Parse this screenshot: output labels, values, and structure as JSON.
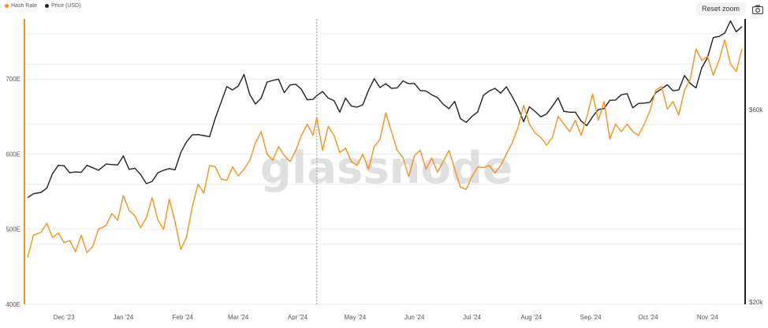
{
  "legend": {
    "hash_rate_label": "Hash Rate",
    "price_label": "Price (USD)"
  },
  "toolbar": {
    "reset_zoom_label": "Reset zoom",
    "camera_icon": "camera-icon"
  },
  "watermark": "glassnode",
  "colors": {
    "hash_rate": "#f7931a",
    "price": "#222222",
    "grid": "#ececec"
  },
  "chart_data": {
    "type": "line",
    "x_tick_labels": [
      "Dec '23",
      "Jan '24",
      "Feb '24",
      "Mar '24",
      "Apr '24",
      "May '24",
      "Jun '24",
      "Jul '24",
      "Aug '24",
      "Sep '24",
      "Oct '24",
      "Nov '24"
    ],
    "left_axis": {
      "tick_labels": [
        "400E",
        "500E",
        "600E",
        "700E"
      ],
      "ticks": [
        400,
        500,
        600,
        700
      ],
      "range": [
        400,
        780
      ]
    },
    "right_axis": {
      "tick_labels": [
        "$20k",
        "$60k"
      ],
      "ticks": [
        20000,
        60000
      ],
      "range": [
        20000,
        100000
      ],
      "scale": "log"
    },
    "grid": "horizontal",
    "legend_position": "top-left",
    "crosshair_date": "2024-04-20",
    "series": [
      {
        "name": "Hash Rate",
        "axis": "left",
        "points": [
          [
            "2023-11-21",
            462
          ],
          [
            "2023-11-24",
            492
          ],
          [
            "2023-11-28",
            496
          ],
          [
            "2023-12-01",
            508
          ],
          [
            "2023-12-04",
            489
          ],
          [
            "2023-12-07",
            495
          ],
          [
            "2023-12-10",
            482
          ],
          [
            "2023-12-13",
            485
          ],
          [
            "2023-12-16",
            470
          ],
          [
            "2023-12-19",
            492
          ],
          [
            "2023-12-22",
            469
          ],
          [
            "2023-12-25",
            477
          ],
          [
            "2023-12-28",
            500
          ],
          [
            "2024-01-01",
            505
          ],
          [
            "2024-01-04",
            521
          ],
          [
            "2024-01-07",
            512
          ],
          [
            "2024-01-10",
            545
          ],
          [
            "2024-01-13",
            525
          ],
          [
            "2024-01-16",
            518
          ],
          [
            "2024-01-19",
            502
          ],
          [
            "2024-01-22",
            515
          ],
          [
            "2024-01-25",
            542
          ],
          [
            "2024-01-28",
            512
          ],
          [
            "2024-01-31",
            500
          ],
          [
            "2024-02-03",
            540
          ],
          [
            "2024-02-06",
            510
          ],
          [
            "2024-02-09",
            473
          ],
          [
            "2024-02-12",
            490
          ],
          [
            "2024-02-15",
            530
          ],
          [
            "2024-02-18",
            560
          ],
          [
            "2024-02-21",
            548
          ],
          [
            "2024-02-24",
            585
          ],
          [
            "2024-02-27",
            583
          ],
          [
            "2024-03-01",
            567
          ],
          [
            "2024-03-04",
            565
          ],
          [
            "2024-03-07",
            583
          ],
          [
            "2024-03-10",
            571
          ],
          [
            "2024-03-13",
            580
          ],
          [
            "2024-03-16",
            592
          ],
          [
            "2024-03-19",
            615
          ],
          [
            "2024-03-22",
            630
          ],
          [
            "2024-03-25",
            600
          ],
          [
            "2024-03-28",
            592
          ],
          [
            "2024-03-31",
            610
          ],
          [
            "2024-04-03",
            598
          ],
          [
            "2024-04-06",
            590
          ],
          [
            "2024-04-09",
            605
          ],
          [
            "2024-04-12",
            625
          ],
          [
            "2024-04-15",
            640
          ],
          [
            "2024-04-18",
            625
          ],
          [
            "2024-04-20",
            648
          ],
          [
            "2024-04-23",
            605
          ],
          [
            "2024-04-26",
            637
          ],
          [
            "2024-04-29",
            625
          ],
          [
            "2024-05-02",
            602
          ],
          [
            "2024-05-05",
            608
          ],
          [
            "2024-05-08",
            590
          ],
          [
            "2024-05-11",
            585
          ],
          [
            "2024-05-14",
            600
          ],
          [
            "2024-05-17",
            580
          ],
          [
            "2024-05-20",
            610
          ],
          [
            "2024-05-23",
            620
          ],
          [
            "2024-05-26",
            655
          ],
          [
            "2024-05-29",
            630
          ],
          [
            "2024-06-01",
            605
          ],
          [
            "2024-06-04",
            595
          ],
          [
            "2024-06-07",
            570
          ],
          [
            "2024-06-10",
            598
          ],
          [
            "2024-06-13",
            605
          ],
          [
            "2024-06-16",
            580
          ],
          [
            "2024-06-19",
            595
          ],
          [
            "2024-06-22",
            576
          ],
          [
            "2024-06-25",
            590
          ],
          [
            "2024-06-28",
            605
          ],
          [
            "2024-07-01",
            580
          ],
          [
            "2024-07-04",
            556
          ],
          [
            "2024-07-07",
            553
          ],
          [
            "2024-07-10",
            570
          ],
          [
            "2024-07-13",
            583
          ],
          [
            "2024-07-16",
            582
          ],
          [
            "2024-07-19",
            585
          ],
          [
            "2024-07-22",
            575
          ],
          [
            "2024-07-25",
            585
          ],
          [
            "2024-07-28",
            600
          ],
          [
            "2024-07-31",
            615
          ],
          [
            "2024-08-03",
            635
          ],
          [
            "2024-08-06",
            665
          ],
          [
            "2024-08-09",
            640
          ],
          [
            "2024-08-12",
            628
          ],
          [
            "2024-08-15",
            622
          ],
          [
            "2024-08-18",
            612
          ],
          [
            "2024-08-21",
            622
          ],
          [
            "2024-08-24",
            650
          ],
          [
            "2024-08-27",
            640
          ],
          [
            "2024-08-30",
            630
          ],
          [
            "2024-09-02",
            645
          ],
          [
            "2024-09-05",
            625
          ],
          [
            "2024-09-08",
            650
          ],
          [
            "2024-09-11",
            680
          ],
          [
            "2024-09-14",
            645
          ],
          [
            "2024-09-17",
            670
          ],
          [
            "2024-09-20",
            620
          ],
          [
            "2024-09-23",
            640
          ],
          [
            "2024-09-26",
            630
          ],
          [
            "2024-09-29",
            640
          ],
          [
            "2024-10-02",
            630
          ],
          [
            "2024-10-05",
            625
          ],
          [
            "2024-10-08",
            640
          ],
          [
            "2024-10-11",
            658
          ],
          [
            "2024-10-14",
            685
          ],
          [
            "2024-10-17",
            690
          ],
          [
            "2024-10-20",
            660
          ],
          [
            "2024-10-23",
            670
          ],
          [
            "2024-10-26",
            652
          ],
          [
            "2024-10-29",
            685
          ],
          [
            "2024-11-01",
            700
          ],
          [
            "2024-11-04",
            740
          ],
          [
            "2024-11-07",
            725
          ],
          [
            "2024-11-10",
            730
          ],
          [
            "2024-11-13",
            705
          ],
          [
            "2024-11-16",
            725
          ],
          [
            "2024-11-19",
            752
          ],
          [
            "2024-11-22",
            720
          ],
          [
            "2024-11-25",
            710
          ],
          [
            "2024-11-28",
            740
          ]
        ]
      },
      {
        "name": "Price (USD)",
        "axis": "right",
        "points": [
          [
            "2023-11-21",
            36500
          ],
          [
            "2023-11-24",
            37300
          ],
          [
            "2023-11-28",
            37600
          ],
          [
            "2023-12-01",
            38500
          ],
          [
            "2023-12-04",
            41800
          ],
          [
            "2023-12-07",
            43800
          ],
          [
            "2023-12-10",
            43700
          ],
          [
            "2023-12-13",
            42000
          ],
          [
            "2023-12-16",
            42200
          ],
          [
            "2023-12-19",
            42100
          ],
          [
            "2023-12-22",
            43800
          ],
          [
            "2023-12-25",
            43200
          ],
          [
            "2023-12-28",
            42600
          ],
          [
            "2024-01-01",
            44100
          ],
          [
            "2024-01-04",
            44000
          ],
          [
            "2024-01-07",
            43900
          ],
          [
            "2024-01-10",
            46200
          ],
          [
            "2024-01-13",
            42800
          ],
          [
            "2024-01-16",
            43100
          ],
          [
            "2024-01-19",
            41600
          ],
          [
            "2024-01-22",
            39500
          ],
          [
            "2024-01-25",
            40000
          ],
          [
            "2024-01-28",
            42000
          ],
          [
            "2024-01-31",
            42600
          ],
          [
            "2024-02-03",
            43000
          ],
          [
            "2024-02-06",
            42700
          ],
          [
            "2024-02-09",
            47100
          ],
          [
            "2024-02-12",
            50000
          ],
          [
            "2024-02-15",
            52000
          ],
          [
            "2024-02-18",
            52100
          ],
          [
            "2024-02-21",
            51800
          ],
          [
            "2024-02-24",
            51500
          ],
          [
            "2024-02-27",
            57100
          ],
          [
            "2024-03-01",
            62400
          ],
          [
            "2024-03-04",
            68300
          ],
          [
            "2024-03-07",
            67000
          ],
          [
            "2024-03-10",
            68500
          ],
          [
            "2024-03-13",
            73100
          ],
          [
            "2024-03-16",
            65300
          ],
          [
            "2024-03-19",
            61900
          ],
          [
            "2024-03-22",
            64000
          ],
          [
            "2024-03-25",
            70000
          ],
          [
            "2024-03-28",
            70700
          ],
          [
            "2024-03-31",
            71200
          ],
          [
            "2024-04-03",
            66000
          ],
          [
            "2024-04-06",
            68900
          ],
          [
            "2024-04-09",
            69200
          ],
          [
            "2024-04-12",
            67200
          ],
          [
            "2024-04-15",
            63400
          ],
          [
            "2024-04-18",
            63500
          ],
          [
            "2024-04-20",
            64900
          ],
          [
            "2024-04-23",
            66400
          ],
          [
            "2024-04-26",
            64000
          ],
          [
            "2024-04-29",
            63100
          ],
          [
            "2024-05-02",
            59100
          ],
          [
            "2024-05-05",
            64000
          ],
          [
            "2024-05-08",
            61200
          ],
          [
            "2024-05-11",
            60800
          ],
          [
            "2024-05-14",
            61600
          ],
          [
            "2024-05-17",
            66900
          ],
          [
            "2024-05-20",
            71400
          ],
          [
            "2024-05-23",
            67900
          ],
          [
            "2024-05-26",
            69400
          ],
          [
            "2024-05-29",
            67600
          ],
          [
            "2024-06-01",
            67800
          ],
          [
            "2024-06-04",
            70500
          ],
          [
            "2024-06-07",
            69400
          ],
          [
            "2024-06-10",
            69500
          ],
          [
            "2024-06-13",
            66800
          ],
          [
            "2024-06-16",
            66600
          ],
          [
            "2024-06-19",
            65200
          ],
          [
            "2024-06-22",
            64200
          ],
          [
            "2024-06-25",
            61800
          ],
          [
            "2024-06-28",
            60300
          ],
          [
            "2024-07-01",
            62800
          ],
          [
            "2024-07-04",
            57000
          ],
          [
            "2024-07-07",
            55800
          ],
          [
            "2024-07-10",
            57700
          ],
          [
            "2024-07-13",
            59200
          ],
          [
            "2024-07-16",
            65000
          ],
          [
            "2024-07-19",
            66600
          ],
          [
            "2024-07-22",
            67600
          ],
          [
            "2024-07-25",
            65800
          ],
          [
            "2024-07-28",
            68200
          ],
          [
            "2024-07-31",
            64600
          ],
          [
            "2024-08-03",
            60700
          ],
          [
            "2024-08-06",
            56000
          ],
          [
            "2024-08-09",
            60900
          ],
          [
            "2024-08-12",
            59300
          ],
          [
            "2024-08-15",
            57600
          ],
          [
            "2024-08-18",
            58500
          ],
          [
            "2024-08-21",
            61100
          ],
          [
            "2024-08-24",
            64100
          ],
          [
            "2024-08-27",
            59400
          ],
          [
            "2024-08-30",
            59100
          ],
          [
            "2024-09-02",
            59100
          ],
          [
            "2024-09-05",
            56200
          ],
          [
            "2024-09-08",
            54800
          ],
          [
            "2024-09-11",
            57600
          ],
          [
            "2024-09-14",
            60000
          ],
          [
            "2024-09-17",
            60300
          ],
          [
            "2024-09-20",
            63200
          ],
          [
            "2024-09-23",
            63300
          ],
          [
            "2024-09-26",
            65200
          ],
          [
            "2024-09-29",
            65600
          ],
          [
            "2024-10-02",
            60600
          ],
          [
            "2024-10-05",
            62100
          ],
          [
            "2024-10-08",
            62200
          ],
          [
            "2024-10-11",
            62500
          ],
          [
            "2024-10-14",
            66000
          ],
          [
            "2024-10-17",
            67400
          ],
          [
            "2024-10-20",
            69000
          ],
          [
            "2024-10-23",
            66700
          ],
          [
            "2024-10-26",
            67000
          ],
          [
            "2024-10-29",
            72700
          ],
          [
            "2024-11-01",
            69500
          ],
          [
            "2024-11-04",
            67800
          ],
          [
            "2024-11-07",
            75900
          ],
          [
            "2024-11-10",
            80400
          ],
          [
            "2024-11-13",
            90000
          ],
          [
            "2024-11-16",
            90600
          ],
          [
            "2024-11-19",
            92300
          ],
          [
            "2024-11-22",
            98900
          ],
          [
            "2024-11-25",
            93000
          ],
          [
            "2024-11-28",
            95800
          ]
        ]
      }
    ]
  }
}
